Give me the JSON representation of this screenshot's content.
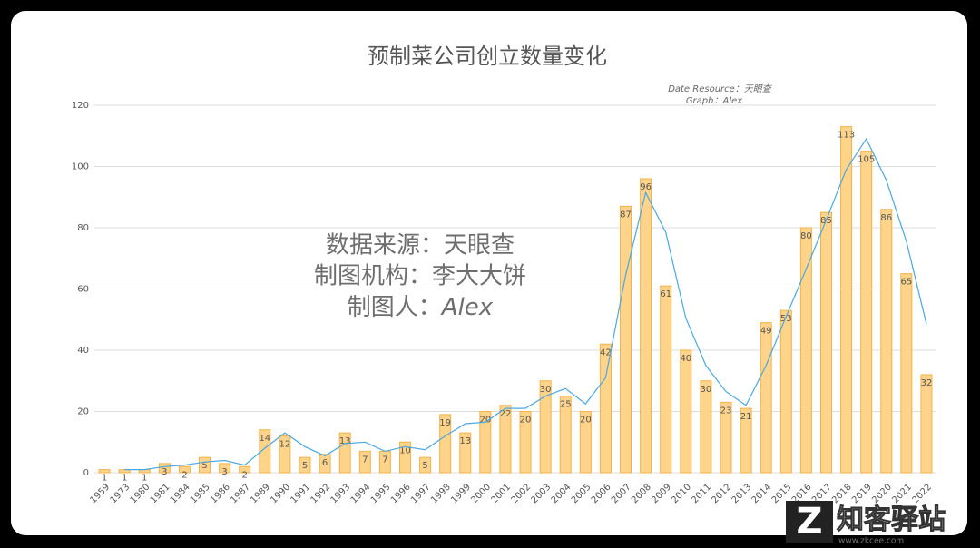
{
  "chart_data": {
    "type": "bar",
    "title": "预制菜公司创立数量变化",
    "source": "Date Resource：天眼查",
    "credit": "Graph：Alex",
    "watermark": [
      "数据来源：天眼查",
      "制图机构：李大大饼"
    ],
    "author": {
      "label": "制图人：",
      "name": "Alex"
    },
    "categories": [
      "1959",
      "1973",
      "1980",
      "1981",
      "1984",
      "1985",
      "1986",
      "1987",
      "1989",
      "1990",
      "1991",
      "1992",
      "1993",
      "1994",
      "1995",
      "1996",
      "1997",
      "1998",
      "1999",
      "2000",
      "2001",
      "2002",
      "2003",
      "2004",
      "2005",
      "2006",
      "2007",
      "2008",
      "2009",
      "2010",
      "2011",
      "2012",
      "2013",
      "2014",
      "2015",
      "2016",
      "2017",
      "2018",
      "2019",
      "2020",
      "2021",
      "2022"
    ],
    "values": [
      1,
      1,
      1,
      3,
      2,
      5,
      3,
      2,
      14,
      12,
      5,
      6,
      13,
      7,
      7,
      10,
      5,
      19,
      13,
      20,
      22,
      20,
      30,
      25,
      20,
      42,
      87,
      96,
      61,
      40,
      30,
      23,
      21,
      49,
      53,
      80,
      85,
      113,
      105,
      86,
      65,
      32
    ],
    "color": "#FDD48A",
    "border_color": "#F2B24A",
    "trendline": {
      "color": "#4AA8E0",
      "values": [
        null,
        1,
        1,
        2,
        2.5,
        3.5,
        4,
        2.5,
        8,
        13,
        8.5,
        5.5,
        9.5,
        10,
        7,
        8.5,
        7.5,
        12,
        16,
        16.5,
        21,
        21,
        25,
        27.5,
        22.5,
        31,
        64.5,
        91.5,
        78.5,
        50.5,
        35,
        26.5,
        22,
        35,
        51,
        66.5,
        82.5,
        99,
        109,
        95.5,
        75.5,
        48.5
      ]
    },
    "ylim": [
      0,
      120
    ],
    "yticks": [
      0,
      20,
      40,
      60,
      80,
      100,
      120
    ],
    "grid": true
  },
  "logo": {
    "brand": "知客驿站",
    "url": "www.zkcee.com"
  }
}
